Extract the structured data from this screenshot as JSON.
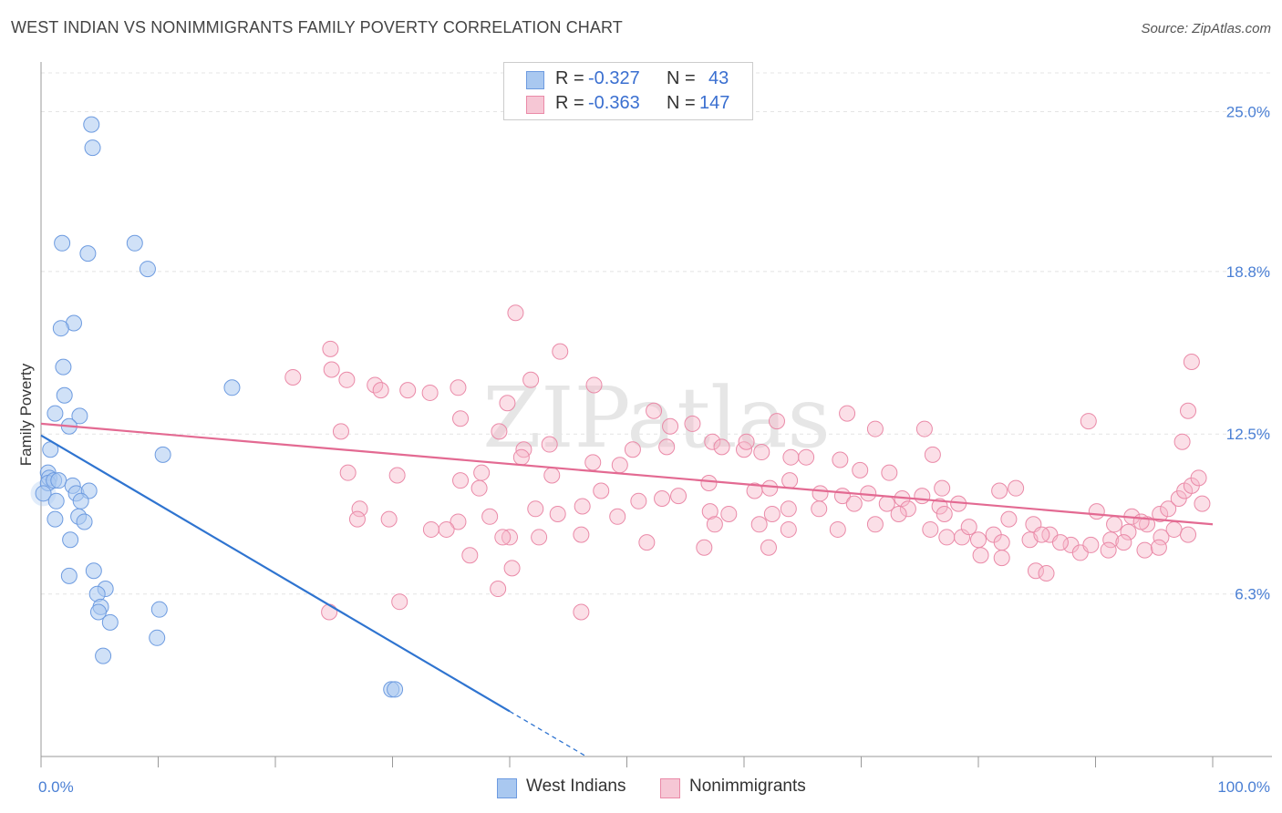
{
  "title": "WEST INDIAN VS NONIMMIGRANTS FAMILY POVERTY CORRELATION CHART",
  "source": "Source: ZipAtlas.com",
  "watermark": "ZIPatlas",
  "legend": {
    "rows": [
      {
        "r_label": "R =",
        "r_value": "-0.327",
        "n_label": "N =",
        "n_value": "43"
      },
      {
        "r_label": "R =",
        "r_value": "-0.363",
        "n_label": "N =",
        "n_value": "147"
      }
    ]
  },
  "bottom_legend": {
    "series1": "West Indians",
    "series2": "Nonimmigrants"
  },
  "colors": {
    "blue_fill": "#a9c8f0",
    "blue_stroke": "#6d9be0",
    "blue_line": "#2f74d0",
    "pink_fill": "#f6b8ca",
    "pink_stroke": "#ea8aa8",
    "pink_line": "#e36a92",
    "tick": "#4a7fd4"
  },
  "chart_data": {
    "type": "scatter",
    "ylabel": "Family Poverty",
    "xlim": [
      0,
      100
    ],
    "ylim": [
      0,
      26.5
    ],
    "yticks": [
      {
        "value": 6.3,
        "label": "6.3%"
      },
      {
        "value": 12.5,
        "label": "12.5%"
      },
      {
        "value": 18.8,
        "label": "18.8%"
      },
      {
        "value": 25.0,
        "label": "25.0%"
      }
    ],
    "xticks_labeled": [
      {
        "value": 0,
        "label": "0.0%"
      },
      {
        "value": 100,
        "label": "100.0%"
      }
    ],
    "grid": true,
    "legend_position": "top-center",
    "series": [
      {
        "name": "West Indians",
        "r": -0.327,
        "n": 43,
        "trend": {
          "x0": 0,
          "y0": 12.45,
          "x1": 40,
          "y1": 1.75,
          "dash_to_x": 46.5
        },
        "points": [
          [
            4.3,
            24.5
          ],
          [
            4.4,
            23.6
          ],
          [
            1.8,
            19.9
          ],
          [
            4.0,
            19.5
          ],
          [
            8.0,
            19.9
          ],
          [
            9.1,
            18.9
          ],
          [
            2.8,
            16.8
          ],
          [
            1.7,
            16.6
          ],
          [
            1.9,
            15.1
          ],
          [
            16.3,
            14.3
          ],
          [
            2.0,
            14.0
          ],
          [
            1.2,
            13.3
          ],
          [
            3.3,
            13.2
          ],
          [
            2.4,
            12.8
          ],
          [
            10.4,
            11.7
          ],
          [
            0.8,
            11.9
          ],
          [
            0.6,
            11.0
          ],
          [
            0.7,
            10.8
          ],
          [
            0.6,
            10.6
          ],
          [
            1.1,
            10.7
          ],
          [
            1.5,
            10.7
          ],
          [
            0.2,
            10.2
          ],
          [
            2.7,
            10.5
          ],
          [
            3.0,
            10.2
          ],
          [
            4.1,
            10.3
          ],
          [
            1.3,
            9.9
          ],
          [
            3.4,
            9.9
          ],
          [
            3.2,
            9.3
          ],
          [
            1.2,
            9.2
          ],
          [
            3.7,
            9.1
          ],
          [
            2.5,
            8.4
          ],
          [
            4.5,
            7.2
          ],
          [
            2.4,
            7.0
          ],
          [
            5.5,
            6.5
          ],
          [
            4.8,
            6.3
          ],
          [
            5.1,
            5.8
          ],
          [
            4.9,
            5.6
          ],
          [
            10.1,
            5.7
          ],
          [
            5.9,
            5.2
          ],
          [
            9.9,
            4.6
          ],
          [
            5.3,
            3.9
          ],
          [
            29.9,
            2.6
          ],
          [
            30.2,
            2.6
          ]
        ]
      },
      {
        "name": "Nonimmigrants",
        "r": -0.363,
        "n": 147,
        "trend": {
          "x0": 0,
          "y0": 12.9,
          "x1": 100,
          "y1": 9.0
        },
        "points": [
          [
            40.5,
            17.2
          ],
          [
            44.3,
            15.7
          ],
          [
            24.7,
            15.8
          ],
          [
            24.8,
            15.0
          ],
          [
            26.1,
            14.6
          ],
          [
            21.5,
            14.7
          ],
          [
            28.5,
            14.4
          ],
          [
            29.0,
            14.2
          ],
          [
            31.3,
            14.2
          ],
          [
            33.2,
            14.1
          ],
          [
            35.6,
            14.3
          ],
          [
            41.8,
            14.6
          ],
          [
            47.2,
            14.4
          ],
          [
            52.3,
            13.4
          ],
          [
            39.8,
            13.7
          ],
          [
            35.8,
            13.1
          ],
          [
            39.1,
            12.6
          ],
          [
            25.6,
            12.6
          ],
          [
            53.7,
            12.8
          ],
          [
            55.6,
            12.9
          ],
          [
            62.8,
            13.0
          ],
          [
            68.8,
            13.3
          ],
          [
            71.2,
            12.7
          ],
          [
            75.4,
            12.7
          ],
          [
            89.4,
            13.0
          ],
          [
            97.9,
            13.4
          ],
          [
            98.2,
            15.3
          ],
          [
            97.4,
            12.2
          ],
          [
            43.4,
            12.1
          ],
          [
            41.2,
            11.9
          ],
          [
            50.5,
            11.9
          ],
          [
            53.4,
            12.0
          ],
          [
            57.3,
            12.2
          ],
          [
            58.1,
            12.0
          ],
          [
            60.0,
            11.9
          ],
          [
            60.2,
            12.2
          ],
          [
            61.5,
            11.8
          ],
          [
            64.0,
            11.6
          ],
          [
            65.3,
            11.6
          ],
          [
            68.2,
            11.5
          ],
          [
            69.9,
            11.1
          ],
          [
            72.4,
            11.0
          ],
          [
            76.1,
            11.7
          ],
          [
            41.0,
            11.6
          ],
          [
            47.1,
            11.4
          ],
          [
            49.4,
            11.3
          ],
          [
            26.2,
            11.0
          ],
          [
            37.6,
            11.0
          ],
          [
            35.8,
            10.7
          ],
          [
            37.4,
            10.4
          ],
          [
            43.6,
            10.9
          ],
          [
            57.0,
            10.6
          ],
          [
            60.9,
            10.3
          ],
          [
            62.2,
            10.4
          ],
          [
            63.9,
            10.7
          ],
          [
            66.5,
            10.2
          ],
          [
            68.4,
            10.1
          ],
          [
            70.6,
            10.2
          ],
          [
            73.5,
            10.0
          ],
          [
            75.2,
            10.1
          ],
          [
            76.9,
            10.4
          ],
          [
            81.8,
            10.3
          ],
          [
            83.2,
            10.4
          ],
          [
            78.3,
            9.8
          ],
          [
            74.0,
            9.6
          ],
          [
            72.2,
            9.8
          ],
          [
            69.4,
            9.8
          ],
          [
            73.2,
            9.4
          ],
          [
            76.7,
            9.7
          ],
          [
            30.4,
            10.9
          ],
          [
            47.8,
            10.3
          ],
          [
            53.0,
            10.0
          ],
          [
            54.4,
            10.1
          ],
          [
            51.0,
            9.9
          ],
          [
            46.2,
            9.7
          ],
          [
            42.2,
            9.6
          ],
          [
            44.1,
            9.4
          ],
          [
            49.2,
            9.3
          ],
          [
            57.1,
            9.5
          ],
          [
            58.7,
            9.4
          ],
          [
            62.4,
            9.4
          ],
          [
            63.8,
            9.6
          ],
          [
            66.4,
            9.6
          ],
          [
            71.2,
            9.0
          ],
          [
            77.1,
            9.4
          ],
          [
            82.6,
            9.2
          ],
          [
            84.7,
            9.0
          ],
          [
            86.1,
            8.6
          ],
          [
            91.6,
            9.0
          ],
          [
            94.4,
            9.0
          ],
          [
            95.5,
            9.4
          ],
          [
            96.2,
            9.6
          ],
          [
            97.1,
            10.0
          ],
          [
            97.6,
            10.3
          ],
          [
            98.2,
            10.5
          ],
          [
            98.8,
            10.8
          ],
          [
            99.1,
            9.8
          ],
          [
            90.1,
            9.5
          ],
          [
            93.1,
            9.3
          ],
          [
            96.7,
            8.8
          ],
          [
            27.2,
            9.6
          ],
          [
            29.7,
            9.2
          ],
          [
            35.6,
            9.1
          ],
          [
            34.6,
            8.8
          ],
          [
            33.3,
            8.8
          ],
          [
            27.0,
            9.2
          ],
          [
            38.3,
            9.3
          ],
          [
            40.0,
            8.5
          ],
          [
            42.5,
            8.5
          ],
          [
            46.1,
            8.6
          ],
          [
            57.5,
            9.0
          ],
          [
            61.3,
            9.0
          ],
          [
            63.8,
            8.8
          ],
          [
            68.0,
            8.8
          ],
          [
            75.9,
            8.8
          ],
          [
            77.3,
            8.5
          ],
          [
            78.6,
            8.5
          ],
          [
            79.2,
            8.9
          ],
          [
            80.0,
            8.4
          ],
          [
            81.3,
            8.6
          ],
          [
            82.0,
            8.3
          ],
          [
            84.4,
            8.4
          ],
          [
            85.4,
            8.6
          ],
          [
            87.9,
            8.2
          ],
          [
            88.7,
            7.9
          ],
          [
            89.6,
            8.2
          ],
          [
            91.3,
            8.4
          ],
          [
            92.8,
            8.7
          ],
          [
            93.9,
            9.1
          ],
          [
            95.6,
            8.5
          ],
          [
            92.4,
            8.3
          ],
          [
            91.1,
            8.0
          ],
          [
            94.2,
            8.0
          ],
          [
            95.4,
            8.1
          ],
          [
            97.9,
            8.6
          ],
          [
            80.2,
            7.8
          ],
          [
            82.0,
            7.7
          ],
          [
            87.0,
            8.3
          ],
          [
            62.1,
            8.1
          ],
          [
            56.6,
            8.1
          ],
          [
            51.7,
            8.3
          ],
          [
            39.4,
            8.5
          ],
          [
            36.6,
            7.8
          ],
          [
            40.2,
            7.3
          ],
          [
            39.0,
            6.5
          ],
          [
            84.9,
            7.2
          ],
          [
            85.8,
            7.1
          ],
          [
            30.6,
            6.0
          ],
          [
            24.6,
            5.6
          ],
          [
            46.1,
            5.6
          ]
        ]
      }
    ]
  }
}
